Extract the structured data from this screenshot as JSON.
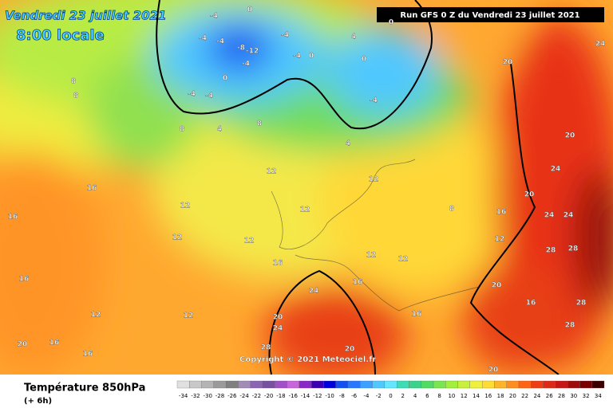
{
  "header": {
    "title": "Vendredi 23 juillet 2021",
    "time": "8:00 locale",
    "run": "Run GFS 0 Z du Vendredi 23 juillet 2021"
  },
  "map": {
    "copyright": "Copyright © 2021 Meteociel.fr",
    "contour_labels": [
      -4,
      0,
      -4,
      -4,
      -8,
      -12,
      -4,
      0,
      -4,
      -4,
      -4,
      -4,
      0,
      4,
      0,
      -4,
      0,
      8,
      8,
      8,
      4,
      8,
      4,
      12,
      12,
      16,
      16,
      12,
      12,
      16,
      12,
      12,
      12,
      12,
      8,
      16,
      12,
      20,
      24,
      24,
      20,
      24,
      28,
      28,
      20,
      16,
      28,
      28,
      16,
      24,
      20,
      24,
      28,
      20,
      16,
      12,
      12,
      16,
      20,
      16,
      24,
      20,
      20,
      16
    ]
  },
  "footer": {
    "field": "Température 850hPa",
    "lead": "(+ 6h)"
  },
  "colorbar": {
    "values": [
      -34,
      -32,
      -30,
      -28,
      -26,
      -24,
      -22,
      -20,
      -18,
      -16,
      -14,
      -12,
      -10,
      -8,
      -6,
      -4,
      -2,
      0,
      2,
      4,
      6,
      8,
      10,
      12,
      14,
      16,
      18,
      20,
      22,
      24,
      26,
      28,
      30,
      32,
      34
    ],
    "colors": [
      "#e0e0e0",
      "#c8c8c8",
      "#b4b4b4",
      "#9a9a9a",
      "#808080",
      "#a08cb4",
      "#8c64b4",
      "#7850a0",
      "#a050c8",
      "#c864dc",
      "#8c28c8",
      "#3c00b4",
      "#0000dc",
      "#1450f0",
      "#2878ff",
      "#3ca0ff",
      "#50c8ff",
      "#64e6ff",
      "#3cdcb4",
      "#3cd28c",
      "#50dc64",
      "#78e650",
      "#a0f03c",
      "#c8f03c",
      "#f0f03c",
      "#ffdc32",
      "#ffb428",
      "#ff8c1e",
      "#ff6414",
      "#f03c14",
      "#dc2814",
      "#c81414",
      "#a00a0a",
      "#780000",
      "#3c0000"
    ]
  }
}
